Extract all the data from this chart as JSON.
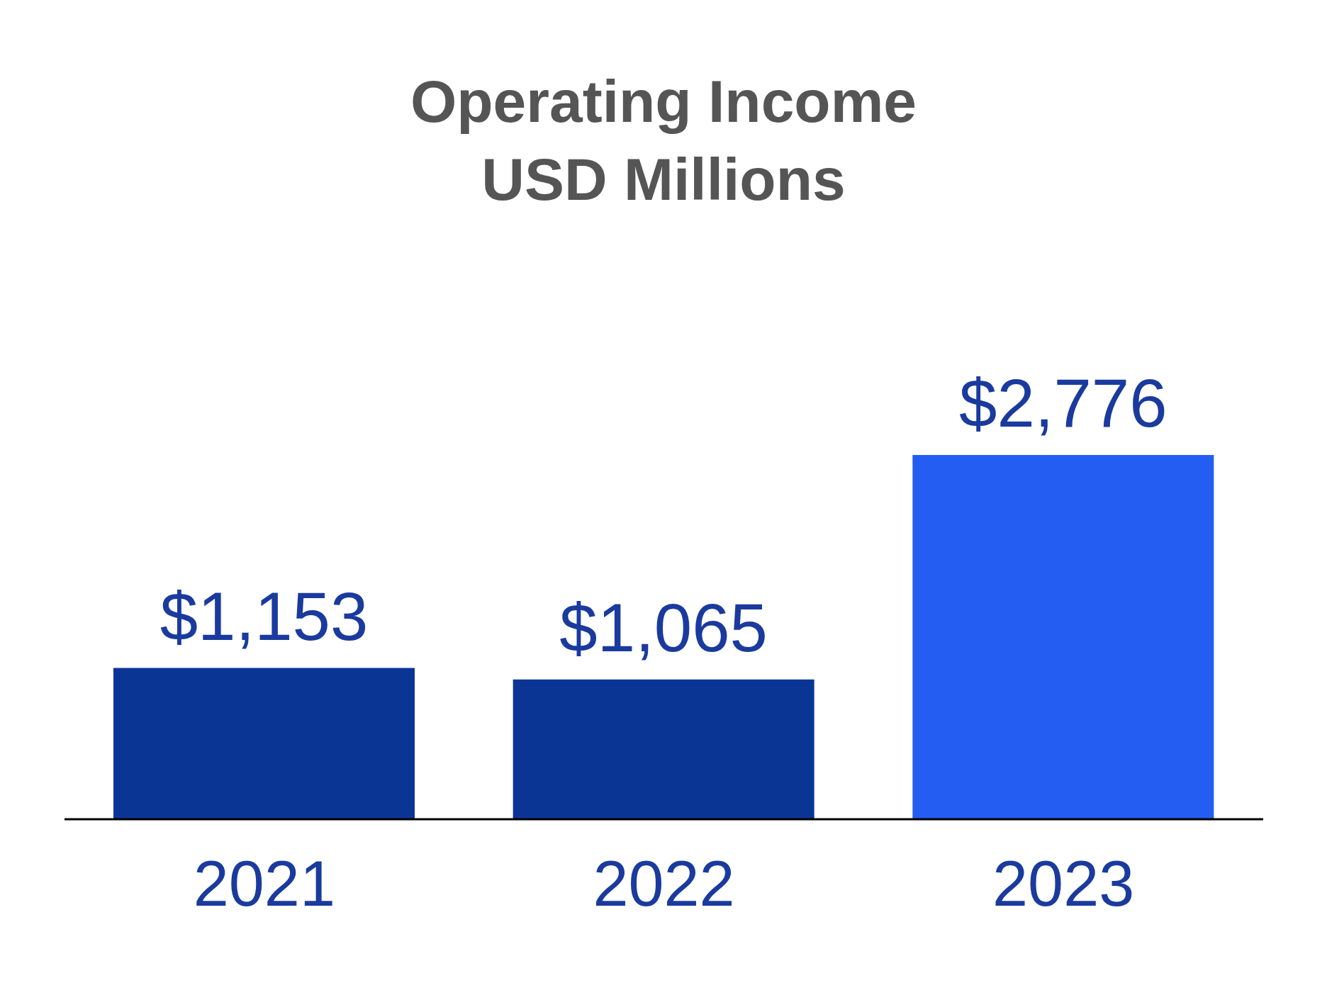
{
  "chart_data": {
    "type": "bar",
    "title": "Operating Income",
    "subtitle": "USD Millions",
    "categories": [
      "2021",
      "2022",
      "2023"
    ],
    "values": [
      1153,
      1065,
      2776
    ],
    "colors": [
      "#0b3595",
      "#0b3595",
      "#245df2"
    ],
    "value_labels": [
      "$1,153",
      "$1,065",
      "$2,776"
    ],
    "grid": false,
    "legend": false
  }
}
